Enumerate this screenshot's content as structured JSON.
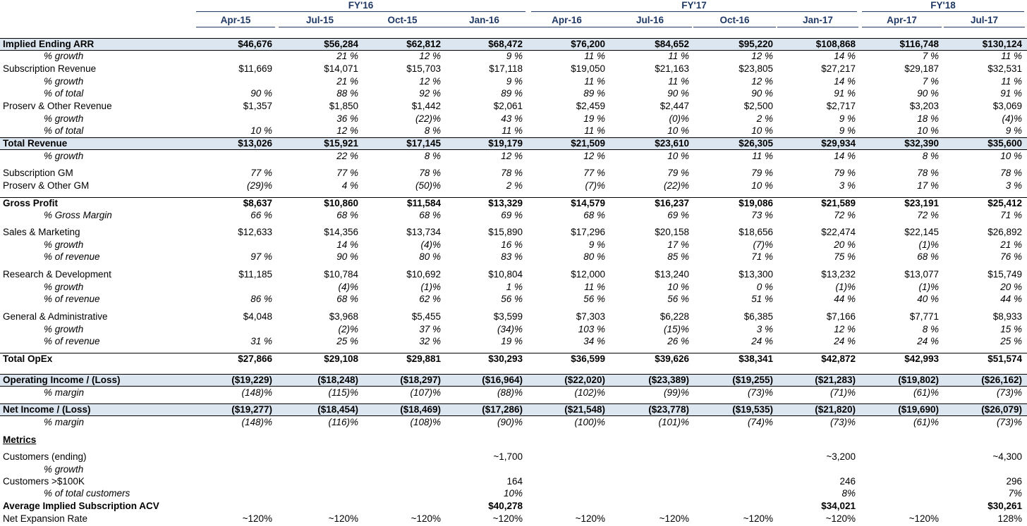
{
  "fiscal_years": [
    "FY'16",
    "FY'17",
    "FY'18"
  ],
  "quarters": [
    "Apr-15",
    "Jul-15",
    "Oct-15",
    "Jan-16",
    "Apr-16",
    "Jul-16",
    "Oct-16",
    "Jan-17",
    "Apr-17",
    "Jul-17"
  ],
  "rows": [
    {
      "label": "Implied Ending ARR",
      "style": "hl",
      "values": [
        "$46,676",
        "$56,284",
        "$62,812",
        "$68,472",
        "$76,200",
        "$84,652",
        "$95,220",
        "$108,868",
        "$116,748",
        "$130,124"
      ]
    },
    {
      "label": "% growth",
      "style": "sub",
      "values": [
        "",
        "21 %",
        "12 %",
        "9 %",
        "11 %",
        "11 %",
        "12 %",
        "14 %",
        "7 %",
        "11 %"
      ]
    },
    {
      "label": "Subscription Revenue",
      "style": "normal",
      "values": [
        "$11,669",
        "$14,071",
        "$15,703",
        "$17,118",
        "$19,050",
        "$21,163",
        "$23,805",
        "$27,217",
        "$29,187",
        "$32,531"
      ]
    },
    {
      "label": "% growth",
      "style": "sub",
      "values": [
        "",
        "21 %",
        "12 %",
        "9 %",
        "11 %",
        "11 %",
        "12 %",
        "14 %",
        "7 %",
        "11 %"
      ]
    },
    {
      "label": "% of total",
      "style": "sub",
      "values": [
        "90 %",
        "88 %",
        "92 %",
        "89 %",
        "89 %",
        "90 %",
        "90 %",
        "91 %",
        "90 %",
        "91 %"
      ]
    },
    {
      "label": "Proserv & Other Revenue",
      "style": "normal",
      "values": [
        "$1,357",
        "$1,850",
        "$1,442",
        "$2,061",
        "$2,459",
        "$2,447",
        "$2,500",
        "$2,717",
        "$3,203",
        "$3,069"
      ]
    },
    {
      "label": "% growth",
      "style": "sub",
      "values": [
        "",
        "36 %",
        "(22)%",
        "43 %",
        "19 %",
        "(0)%",
        "2 %",
        "9 %",
        "18 %",
        "(4)%"
      ]
    },
    {
      "label": "% of total",
      "style": "sub",
      "values": [
        "10 %",
        "12 %",
        "8 %",
        "11 %",
        "11 %",
        "10 %",
        "10 %",
        "9 %",
        "10 %",
        "9 %"
      ]
    },
    {
      "label": "Total Revenue",
      "style": "hl",
      "values": [
        "$13,026",
        "$15,921",
        "$17,145",
        "$19,179",
        "$21,509",
        "$23,610",
        "$26,305",
        "$29,934",
        "$32,390",
        "$35,600"
      ]
    },
    {
      "label": "% growth",
      "style": "sub",
      "values": [
        "",
        "22 %",
        "8 %",
        "12 %",
        "12 %",
        "10 %",
        "11 %",
        "14 %",
        "8 %",
        "10 %"
      ]
    },
    {
      "label": "Subscription GM",
      "style": "normal-it",
      "values": [
        "77 %",
        "77 %",
        "78 %",
        "78 %",
        "77 %",
        "79 %",
        "79 %",
        "79 %",
        "78 %",
        "78 %"
      ]
    },
    {
      "label": "Proserv & Other GM",
      "style": "normal-it",
      "values": [
        "(29)%",
        "4 %",
        "(50)%",
        "2 %",
        "(7)%",
        "(22)%",
        "10 %",
        "3 %",
        "17 %",
        "3 %"
      ]
    },
    {
      "label": "Gross Profit",
      "style": "bold-top",
      "values": [
        "$8,637",
        "$10,860",
        "$11,584",
        "$13,329",
        "$14,579",
        "$16,237",
        "$19,086",
        "$21,589",
        "$23,191",
        "$25,412"
      ]
    },
    {
      "label": "% Gross Margin",
      "style": "sub",
      "values": [
        "66 %",
        "68 %",
        "68 %",
        "69 %",
        "68 %",
        "69 %",
        "73 %",
        "72 %",
        "72 %",
        "71 %"
      ]
    },
    {
      "label": "Sales & Marketing",
      "style": "normal",
      "values": [
        "$12,633",
        "$14,356",
        "$13,734",
        "$15,890",
        "$17,296",
        "$20,158",
        "$18,656",
        "$22,474",
        "$22,145",
        "$26,892"
      ]
    },
    {
      "label": "% growth",
      "style": "sub",
      "values": [
        "",
        "14 %",
        "(4)%",
        "16 %",
        "9 %",
        "17 %",
        "(7)%",
        "20 %",
        "(1)%",
        "21 %"
      ]
    },
    {
      "label": "% of revenue",
      "style": "sub",
      "values": [
        "97 %",
        "90 %",
        "80 %",
        "83 %",
        "80 %",
        "85 %",
        "71 %",
        "75 %",
        "68 %",
        "76 %"
      ]
    },
    {
      "label": "Research & Development",
      "style": "normal",
      "values": [
        "$11,185",
        "$10,784",
        "$10,692",
        "$10,804",
        "$12,000",
        "$13,240",
        "$13,300",
        "$13,232",
        "$13,077",
        "$15,749"
      ]
    },
    {
      "label": "% growth",
      "style": "sub",
      "values": [
        "",
        "(4)%",
        "(1)%",
        "1 %",
        "11 %",
        "10 %",
        "0 %",
        "(1)%",
        "(1)%",
        "20 %"
      ]
    },
    {
      "label": "% of revenue",
      "style": "sub",
      "values": [
        "86 %",
        "68 %",
        "62 %",
        "56 %",
        "56 %",
        "56 %",
        "51 %",
        "44 %",
        "40 %",
        "44 %"
      ]
    },
    {
      "label": "General & Administrative",
      "style": "normal",
      "values": [
        "$4,048",
        "$3,968",
        "$5,455",
        "$3,599",
        "$7,303",
        "$6,228",
        "$6,385",
        "$7,166",
        "$7,771",
        "$8,933"
      ]
    },
    {
      "label": "% growth",
      "style": "sub",
      "values": [
        "",
        "(2)%",
        "37 %",
        "(34)%",
        "103 %",
        "(15)%",
        "3 %",
        "12 %",
        "8 %",
        "15 %"
      ]
    },
    {
      "label": "% of revenue",
      "style": "sub",
      "values": [
        "31 %",
        "25 %",
        "32 %",
        "19 %",
        "34 %",
        "26 %",
        "24 %",
        "24 %",
        "24 %",
        "25 %"
      ]
    },
    {
      "label": "Total OpEx",
      "style": "bold-top",
      "values": [
        "$27,866",
        "$29,108",
        "$29,881",
        "$30,293",
        "$36,599",
        "$39,626",
        "$38,341",
        "$42,872",
        "$42,993",
        "$51,574"
      ]
    },
    {
      "label": "Operating Income / (Loss)",
      "style": "hl",
      "values": [
        "($19,229)",
        "($18,248)",
        "($18,297)",
        "($16,964)",
        "($22,020)",
        "($23,389)",
        "($19,255)",
        "($21,283)",
        "($19,802)",
        "($26,162)"
      ]
    },
    {
      "label": "% margin",
      "style": "sub",
      "values": [
        "(148)%",
        "(115)%",
        "(107)%",
        "(88)%",
        "(102)%",
        "(99)%",
        "(73)%",
        "(71)%",
        "(61)%",
        "(73)%"
      ]
    },
    {
      "label": "Net Income / (Loss)",
      "style": "hl",
      "values": [
        "($19,277)",
        "($18,454)",
        "($18,469)",
        "($17,286)",
        "($21,548)",
        "($23,778)",
        "($19,535)",
        "($21,820)",
        "($19,690)",
        "($26,079)"
      ]
    },
    {
      "label": "% margin",
      "style": "sub",
      "values": [
        "(148)%",
        "(116)%",
        "(108)%",
        "(90)%",
        "(100)%",
        "(101)%",
        "(74)%",
        "(73)%",
        "(61)%",
        "(73)%"
      ]
    },
    {
      "label": "Metrics",
      "style": "metrics",
      "values": [
        "",
        "",
        "",
        "",
        "",
        "",
        "",
        "",
        "",
        ""
      ]
    },
    {
      "label": "Customers (ending)",
      "style": "normal",
      "values": [
        "",
        "",
        "",
        "~1,700",
        "",
        "",
        "",
        "~3,200",
        "",
        "~4,300"
      ]
    },
    {
      "label": "% growth",
      "style": "sub",
      "values": [
        "",
        "",
        "",
        "",
        "",
        "",
        "",
        "",
        "",
        ""
      ]
    },
    {
      "label": "Customers >$100K",
      "style": "normal",
      "values": [
        "",
        "",
        "",
        "164",
        "",
        "",
        "",
        "246",
        "",
        "296"
      ]
    },
    {
      "label": "% of total customers",
      "style": "sub",
      "values": [
        "",
        "",
        "",
        "10%",
        "",
        "",
        "",
        "8%",
        "",
        "7%"
      ]
    },
    {
      "label": "Average Implied Subscription ACV",
      "style": "bold",
      "values": [
        "",
        "",
        "",
        "$40,278",
        "",
        "",
        "",
        "$34,021",
        "",
        "$30,261"
      ]
    },
    {
      "label": "Net Expansion Rate",
      "style": "normal",
      "values": [
        "~120%",
        "~120%",
        "~120%",
        "~120%",
        "~120%",
        "~120%",
        "~120%",
        "~120%",
        "~120%",
        "128%"
      ]
    }
  ]
}
